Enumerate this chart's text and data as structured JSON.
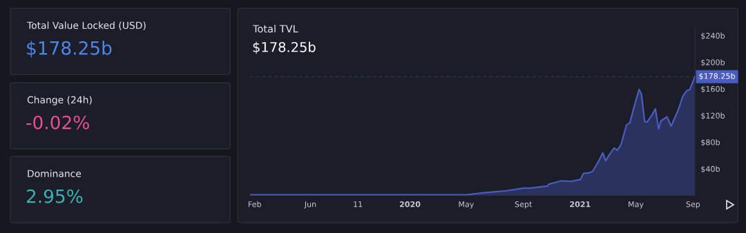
{
  "chart_data": [
    {
      "type": "other",
      "title": "Total Value Locked (USD)",
      "subtitle": "$178.25b",
      "color": "#4f86e8"
    },
    {
      "type": "other",
      "title": "Change (24h)",
      "subtitle": "-0.02%",
      "color": "#ec4d93"
    },
    {
      "type": "other",
      "title": "Dominance",
      "subtitle": "2.95%",
      "color": "#3fb0b2"
    },
    {
      "type": "area",
      "title": "Total TVL",
      "subtitle": "$178.25b",
      "color": "#4a5cc0",
      "x": [
        "2019-01-22",
        "2019-06-01",
        "2019-09-11",
        "2020-01-01",
        "2020-05-01",
        "2020-06-08",
        "2020-07-26",
        "2020-09-02",
        "2020-09-15",
        "2020-10-23",
        "2020-10-26",
        "2020-11-22",
        "2020-12-13",
        "2021-01-02",
        "2021-01-08",
        "2021-01-21",
        "2021-01-28",
        "2021-02-08",
        "2021-02-19",
        "2021-02-25",
        "2021-03-03",
        "2021-03-15",
        "2021-03-22",
        "2021-03-30",
        "2021-04-11",
        "2021-04-18",
        "2021-04-26",
        "2021-05-08",
        "2021-05-13",
        "2021-05-20",
        "2021-05-25",
        "2021-06-05",
        "2021-06-12",
        "2021-06-19",
        "2021-06-24",
        "2021-07-07",
        "2021-07-16",
        "2021-07-31",
        "2021-08-10",
        "2021-08-18",
        "2021-08-25",
        "2021-09-02",
        "2021-09-05"
      ],
      "values": [
        1,
        1,
        1,
        1,
        1,
        4,
        7,
        11,
        11,
        14,
        17,
        22,
        21,
        24,
        33,
        34,
        36,
        49,
        64,
        52,
        59,
        71,
        68,
        76,
        106,
        109,
        130,
        159,
        152,
        111,
        110,
        121,
        130,
        100,
        112,
        118,
        104,
        128,
        149,
        157,
        159,
        173,
        178.25
      ],
      "xlim": [
        "2019-01-22",
        "2021-09-05"
      ],
      "xticks": [
        {
          "value": "2019-02-01",
          "label": "Feb"
        },
        {
          "value": "2019-06-01",
          "label": "Jun"
        },
        {
          "value": "2019-09-11",
          "label": "11"
        },
        {
          "value": "2020-01-01",
          "label": "2020"
        },
        {
          "value": "2020-05-01",
          "label": "May"
        },
        {
          "value": "2020-09-01",
          "label": "Sept"
        },
        {
          "value": "2021-01-01",
          "label": "2021"
        },
        {
          "value": "2021-05-01",
          "label": "May"
        },
        {
          "value": "2021-09-01",
          "label": "Sep"
        }
      ],
      "ylim": [
        0,
        252
      ],
      "yticks": [
        {
          "value": 40,
          "label": "$40b"
        },
        {
          "value": 80,
          "label": "$80b"
        },
        {
          "value": 120,
          "label": "$120b"
        },
        {
          "value": 160,
          "label": "$160b"
        },
        {
          "value": 200,
          "label": "$200b"
        },
        {
          "value": 240,
          "label": "$240b"
        }
      ],
      "ref_lines": [
        {
          "axis": "y",
          "value": 178.25,
          "label": "$178.25b",
          "color": "#3a3d50",
          "line_style": "dashed"
        }
      ],
      "grid": false
    }
  ]
}
